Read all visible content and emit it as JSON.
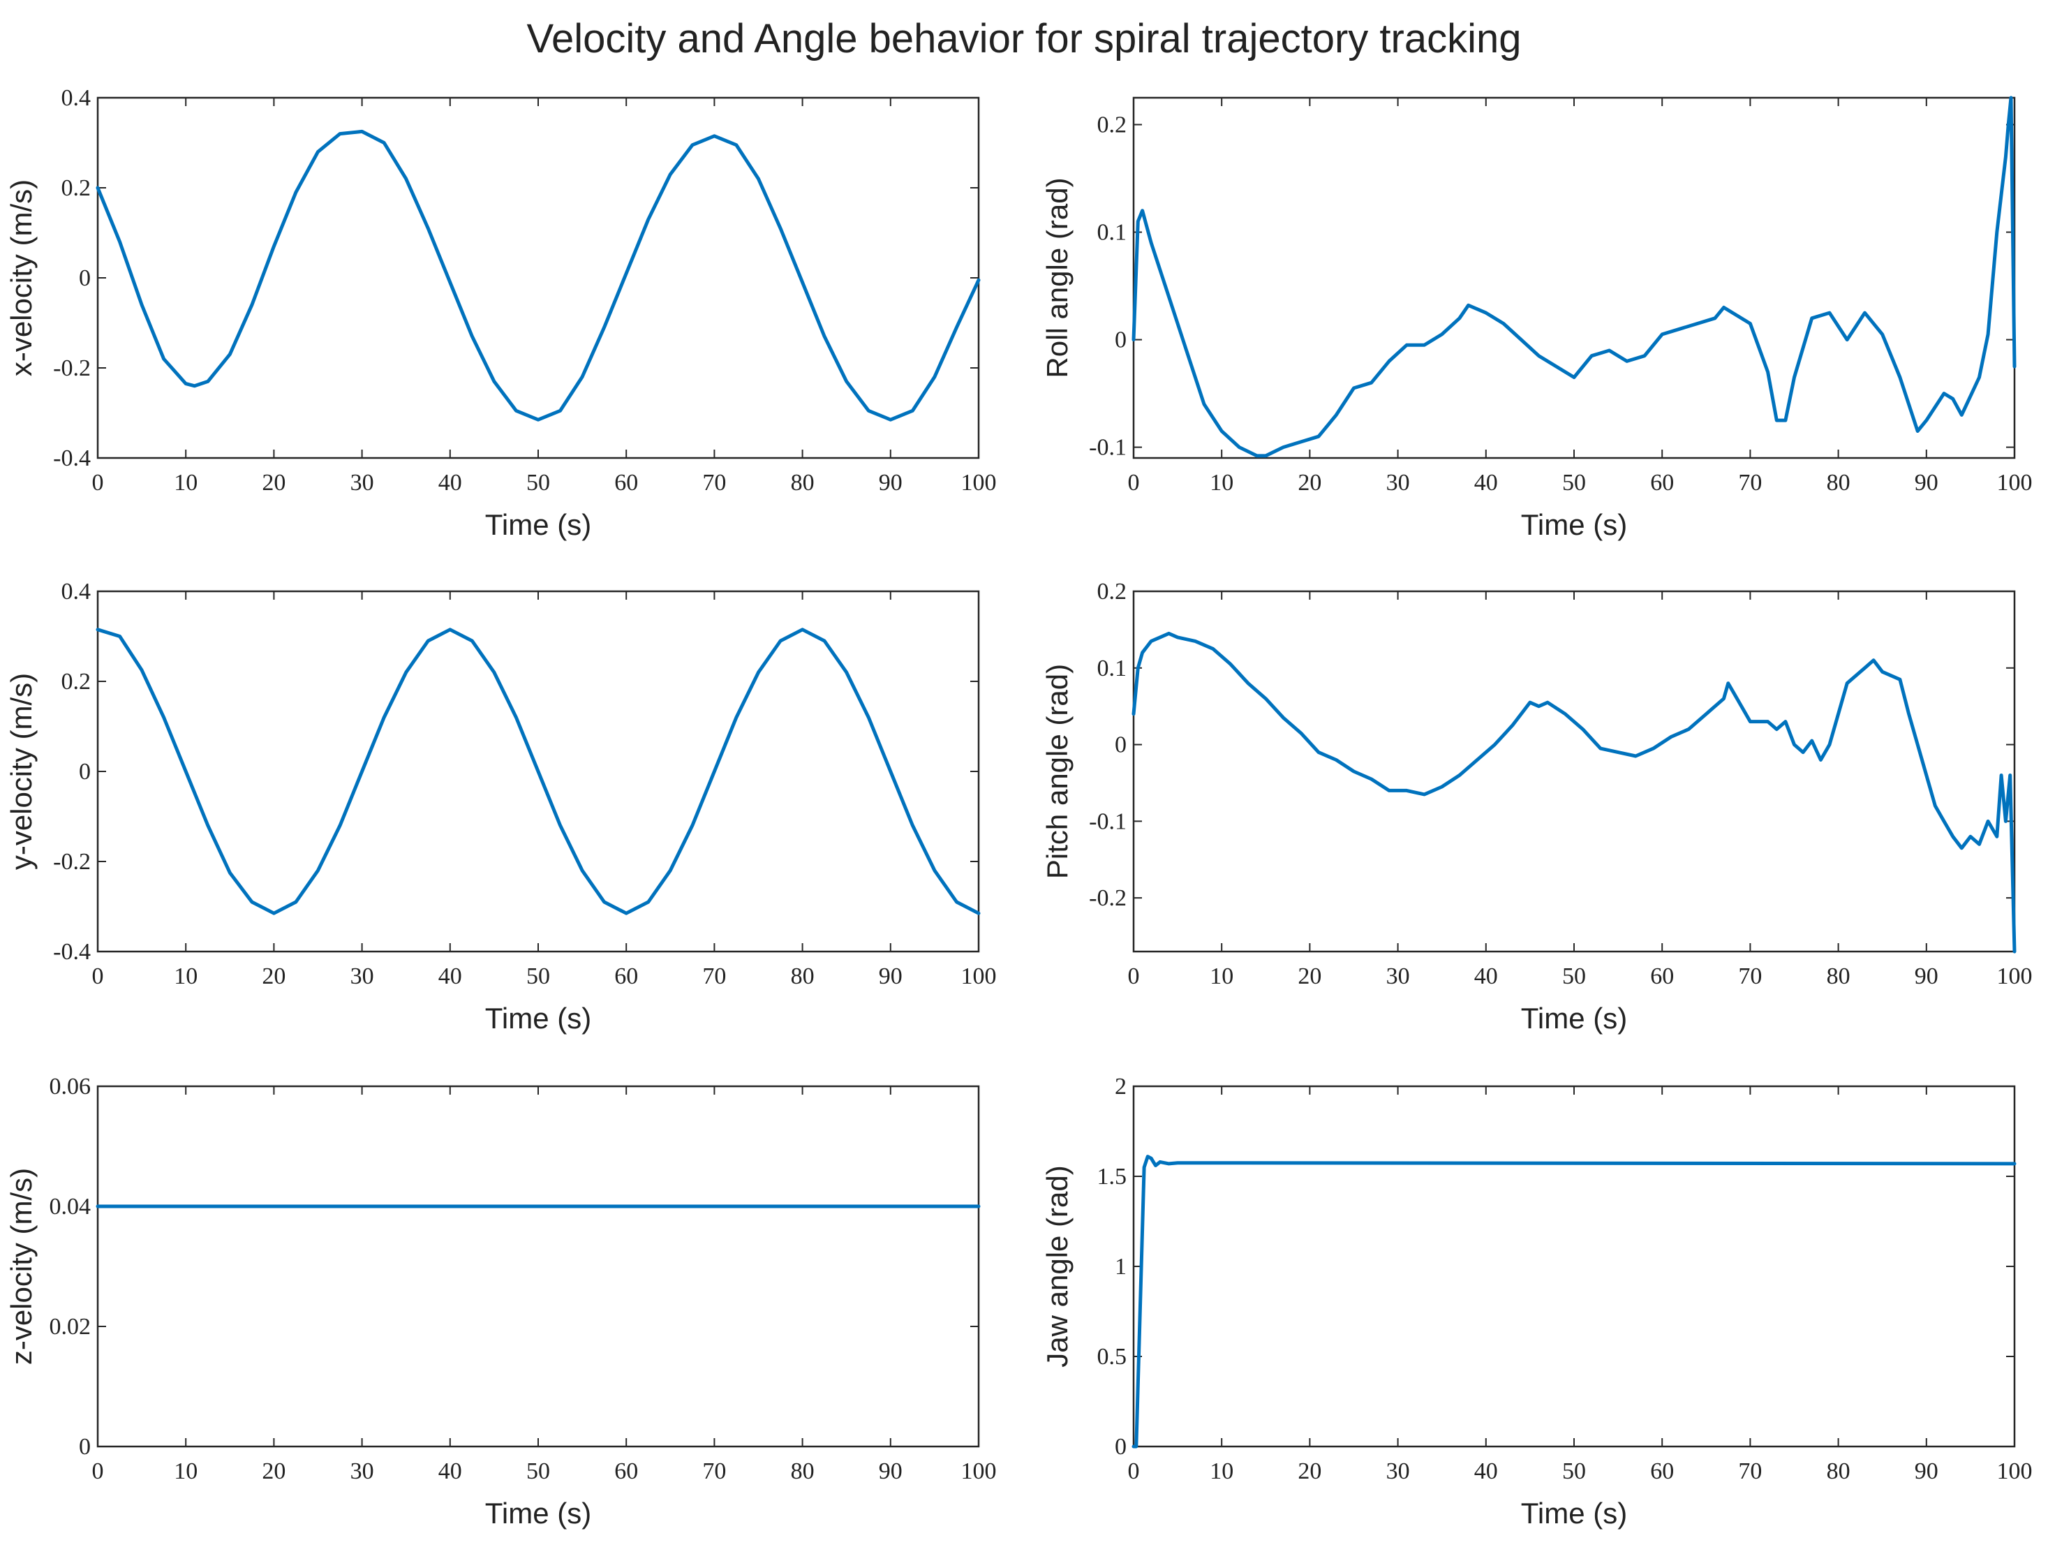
{
  "figure_title": "Velocity and Angle behavior for spiral trajectory tracking",
  "series_color": "#0072BD",
  "chart_data": [
    {
      "id": "xvel",
      "type": "line",
      "xlabel": "Time (s)",
      "ylabel": "x-velocity (m/s)",
      "xlim": [
        0,
        100
      ],
      "ylim": [
        -0.4,
        0.4
      ],
      "xticks": [
        0,
        10,
        20,
        30,
        40,
        50,
        60,
        70,
        80,
        90,
        100
      ],
      "xtick_labels": [
        "0",
        "10",
        "20",
        "30",
        "40",
        "50",
        "60",
        "70",
        "80",
        "90",
        "100"
      ],
      "yticks": [
        -0.4,
        -0.2,
        0,
        0.2,
        0.4
      ],
      "ytick_labels": [
        "-0.4",
        "-0.2",
        "0",
        "0.2",
        "0.4"
      ],
      "series": [
        {
          "name": "x-velocity",
          "x": [
            0,
            2.5,
            5,
            7.5,
            10,
            11,
            12.5,
            15,
            17.5,
            20,
            22.5,
            25,
            27.5,
            30,
            32.5,
            35,
            37.5,
            40,
            42.5,
            45,
            47.5,
            50,
            52.5,
            55,
            57.5,
            60,
            62.5,
            65,
            67.5,
            70,
            72.5,
            75,
            77.5,
            80,
            82.5,
            85,
            87.5,
            90,
            92.5,
            95,
            97.5,
            100
          ],
          "y": [
            0.2,
            0.08,
            -0.06,
            -0.18,
            -0.235,
            -0.24,
            -0.23,
            -0.17,
            -0.06,
            0.07,
            0.19,
            0.28,
            0.32,
            0.325,
            0.3,
            0.22,
            0.11,
            -0.01,
            -0.13,
            -0.23,
            -0.295,
            -0.315,
            -0.295,
            -0.22,
            -0.11,
            0.01,
            0.13,
            0.23,
            0.295,
            0.315,
            0.295,
            0.22,
            0.11,
            -0.01,
            -0.13,
            -0.23,
            -0.295,
            -0.315,
            -0.295,
            -0.22,
            -0.11,
            -0.005
          ]
        }
      ]
    },
    {
      "id": "roll",
      "type": "line",
      "xlabel": "Time (s)",
      "ylabel": "Roll angle (rad)",
      "xlim": [
        0,
        100
      ],
      "ylim": [
        -0.11,
        0.225
      ],
      "xticks": [
        0,
        10,
        20,
        30,
        40,
        50,
        60,
        70,
        80,
        90,
        100
      ],
      "xtick_labels": [
        "0",
        "10",
        "20",
        "30",
        "40",
        "50",
        "60",
        "70",
        "80",
        "90",
        "100"
      ],
      "yticks": [
        -0.1,
        0,
        0.1,
        0.2
      ],
      "ytick_labels": [
        "-0.1",
        "0",
        "0.1",
        "0.2"
      ],
      "series": [
        {
          "name": "Roll angle",
          "x": [
            0,
            0.5,
            1,
            2,
            4,
            6,
            8,
            10,
            12,
            14,
            15,
            17,
            19,
            21,
            23,
            25,
            27,
            29,
            31,
            33,
            35,
            37,
            38,
            40,
            42,
            44,
            46,
            48,
            50,
            52,
            54,
            56,
            58,
            60,
            62,
            64,
            66,
            67,
            68,
            70,
            72,
            73,
            74,
            75,
            77,
            79,
            81,
            83,
            85,
            87,
            89,
            90,
            92,
            93,
            94,
            96,
            97,
            98,
            98.5,
            99,
            99.3,
            99.6,
            100
          ],
          "y": [
            0.0,
            0.11,
            0.12,
            0.09,
            0.04,
            -0.01,
            -0.06,
            -0.085,
            -0.1,
            -0.108,
            -0.108,
            -0.1,
            -0.095,
            -0.09,
            -0.07,
            -0.045,
            -0.04,
            -0.02,
            -0.005,
            -0.005,
            0.005,
            0.02,
            0.032,
            0.025,
            0.015,
            0.0,
            -0.015,
            -0.025,
            -0.035,
            -0.015,
            -0.01,
            -0.02,
            -0.015,
            0.005,
            0.01,
            0.015,
            0.02,
            0.03,
            0.025,
            0.015,
            -0.03,
            -0.075,
            -0.075,
            -0.035,
            0.02,
            0.025,
            0.0,
            0.025,
            0.005,
            -0.035,
            -0.085,
            -0.075,
            -0.05,
            -0.055,
            -0.07,
            -0.035,
            0.005,
            0.1,
            0.135,
            0.17,
            0.2,
            0.225,
            -0.025
          ]
        }
      ]
    },
    {
      "id": "yvel",
      "type": "line",
      "xlabel": "Time (s)",
      "ylabel": "y-velocity (m/s)",
      "xlim": [
        0,
        100
      ],
      "ylim": [
        -0.4,
        0.4
      ],
      "xticks": [
        0,
        10,
        20,
        30,
        40,
        50,
        60,
        70,
        80,
        90,
        100
      ],
      "xtick_labels": [
        "0",
        "10",
        "20",
        "30",
        "40",
        "50",
        "60",
        "70",
        "80",
        "90",
        "100"
      ],
      "yticks": [
        -0.4,
        -0.2,
        0,
        0.2,
        0.4
      ],
      "ytick_labels": [
        "-0.4",
        "-0.2",
        "0",
        "0.2",
        "0.4"
      ],
      "series": [
        {
          "name": "y-velocity",
          "x": [
            0,
            2.5,
            5,
            7.5,
            10,
            12.5,
            15,
            17.5,
            20,
            22.5,
            25,
            27.5,
            30,
            32.5,
            35,
            37.5,
            40,
            42.5,
            45,
            47.5,
            50,
            52.5,
            55,
            57.5,
            60,
            62.5,
            65,
            67.5,
            70,
            72.5,
            75,
            77.5,
            80,
            82.5,
            85,
            87.5,
            90,
            92.5,
            95,
            97.5,
            100
          ],
          "y": [
            0.315,
            0.3,
            0.225,
            0.12,
            0.0,
            -0.12,
            -0.225,
            -0.29,
            -0.315,
            -0.29,
            -0.22,
            -0.12,
            0.0,
            0.12,
            0.22,
            0.29,
            0.315,
            0.29,
            0.22,
            0.12,
            0.0,
            -0.12,
            -0.22,
            -0.29,
            -0.315,
            -0.29,
            -0.22,
            -0.12,
            0.0,
            0.12,
            0.22,
            0.29,
            0.315,
            0.29,
            0.22,
            0.12,
            0.0,
            -0.12,
            -0.22,
            -0.29,
            -0.315
          ]
        }
      ]
    },
    {
      "id": "pitch",
      "type": "line",
      "xlabel": "Time (s)",
      "ylabel": "Pitch angle (rad)",
      "xlim": [
        0,
        100
      ],
      "ylim": [
        -0.27,
        0.2
      ],
      "xticks": [
        0,
        10,
        20,
        30,
        40,
        50,
        60,
        70,
        80,
        90,
        100
      ],
      "xtick_labels": [
        "0",
        "10",
        "20",
        "30",
        "40",
        "50",
        "60",
        "70",
        "80",
        "90",
        "100"
      ],
      "yticks": [
        -0.2,
        -0.1,
        0,
        0.1,
        0.2
      ],
      "ytick_labels": [
        "-0.2",
        "-0.1",
        "0",
        "0.1",
        "0.2"
      ],
      "series": [
        {
          "name": "Pitch angle",
          "x": [
            0,
            0.5,
            1,
            2,
            3,
            4,
            5,
            7,
            9,
            11,
            13,
            15,
            17,
            19,
            21,
            23,
            25,
            27,
            29,
            31,
            33,
            35,
            37,
            39,
            41,
            43,
            45,
            46,
            47,
            49,
            51,
            53,
            55,
            57,
            59,
            61,
            63,
            65,
            67,
            67.5,
            68,
            70,
            72,
            73,
            74,
            75,
            76,
            77,
            78,
            79,
            81,
            83,
            84,
            85,
            87,
            88,
            89,
            90,
            91,
            92,
            93,
            94,
            95,
            96,
            97,
            98,
            98.5,
            99,
            99.5,
            100
          ],
          "y": [
            0.04,
            0.1,
            0.12,
            0.135,
            0.14,
            0.145,
            0.14,
            0.135,
            0.125,
            0.105,
            0.08,
            0.06,
            0.035,
            0.015,
            -0.01,
            -0.02,
            -0.035,
            -0.045,
            -0.06,
            -0.06,
            -0.065,
            -0.055,
            -0.04,
            -0.02,
            0.0,
            0.025,
            0.055,
            0.05,
            0.055,
            0.04,
            0.02,
            -0.005,
            -0.01,
            -0.015,
            -0.005,
            0.01,
            0.02,
            0.04,
            0.06,
            0.08,
            0.07,
            0.03,
            0.03,
            0.02,
            0.03,
            0.0,
            -0.01,
            0.005,
            -0.02,
            0.0,
            0.08,
            0.1,
            0.11,
            0.095,
            0.085,
            0.04,
            0.0,
            -0.04,
            -0.08,
            -0.1,
            -0.12,
            -0.135,
            -0.12,
            -0.13,
            -0.1,
            -0.12,
            -0.04,
            -0.1,
            -0.04,
            -0.27
          ]
        }
      ]
    },
    {
      "id": "zvel",
      "type": "line",
      "xlabel": "Time (s)",
      "ylabel": "z-velocity (m/s)",
      "xlim": [
        0,
        100
      ],
      "ylim": [
        0,
        0.06
      ],
      "xticks": [
        0,
        10,
        20,
        30,
        40,
        50,
        60,
        70,
        80,
        90,
        100
      ],
      "xtick_labels": [
        "0",
        "10",
        "20",
        "30",
        "40",
        "50",
        "60",
        "70",
        "80",
        "90",
        "100"
      ],
      "yticks": [
        0,
        0.02,
        0.04,
        0.06
      ],
      "ytick_labels": [
        "0",
        "0.02",
        "0.04",
        "0.06"
      ],
      "series": [
        {
          "name": "z-velocity",
          "x": [
            0,
            100
          ],
          "y": [
            0.04,
            0.04
          ]
        }
      ]
    },
    {
      "id": "jaw",
      "type": "line",
      "xlabel": "Time (s)",
      "ylabel": "Jaw angle (rad)",
      "xlim": [
        0,
        100
      ],
      "ylim": [
        0,
        2
      ],
      "xticks": [
        0,
        10,
        20,
        30,
        40,
        50,
        60,
        70,
        80,
        90,
        100
      ],
      "xtick_labels": [
        "0",
        "10",
        "20",
        "30",
        "40",
        "50",
        "60",
        "70",
        "80",
        "90",
        "100"
      ],
      "yticks": [
        0,
        0.5,
        1,
        1.5,
        2
      ],
      "ytick_labels": [
        "0",
        "0.5",
        "1",
        "1.5",
        "2"
      ],
      "series": [
        {
          "name": "Jaw angle",
          "x": [
            0,
            0.3,
            1.2,
            1.6,
            2.0,
            2.5,
            3,
            4,
            5,
            100
          ],
          "y": [
            0.0,
            0.0,
            1.55,
            1.61,
            1.6,
            1.56,
            1.58,
            1.57,
            1.575,
            1.57
          ]
        }
      ]
    }
  ]
}
